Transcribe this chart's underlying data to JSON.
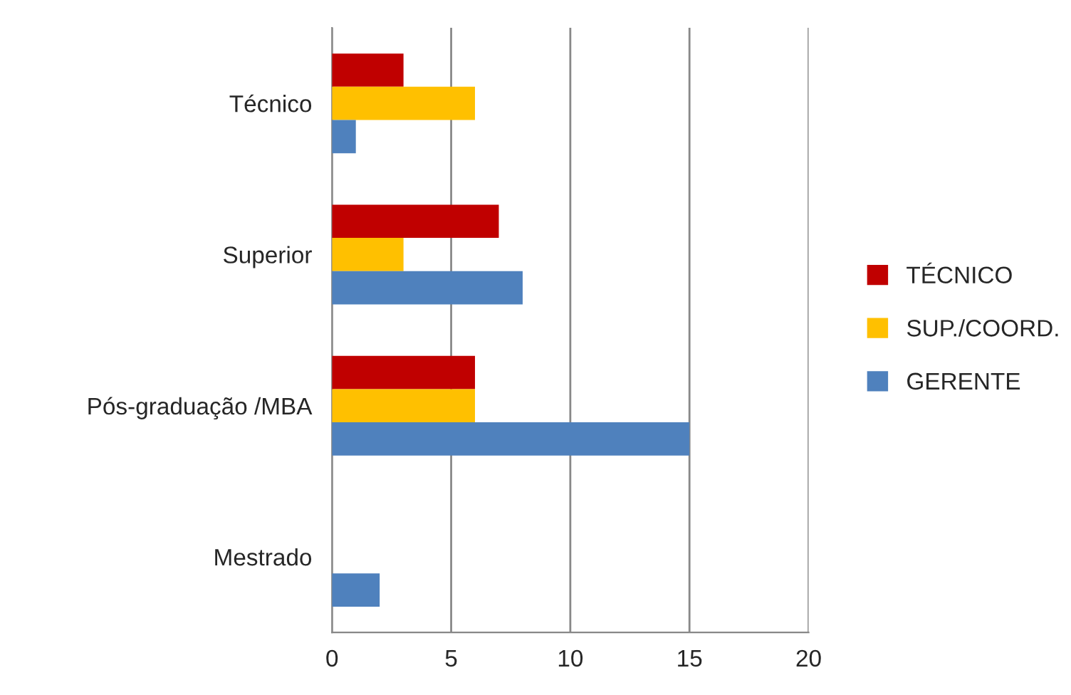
{
  "chart_data": {
    "type": "bar",
    "orientation": "horizontal",
    "categories": [
      "Técnico",
      "Superior",
      "Pós-graduação /MBA",
      "Mestrado"
    ],
    "series": [
      {
        "name": "TÉCNICO",
        "color": "#c00000",
        "values": [
          3,
          7,
          6,
          null
        ]
      },
      {
        "name": "SUP./COORD.",
        "color": "#ffc000",
        "values": [
          6,
          3,
          6,
          null
        ]
      },
      {
        "name": "GERENTE",
        "color": "#4f81bd",
        "values": [
          1,
          8,
          15,
          2
        ]
      }
    ],
    "xlim": [
      0,
      20
    ],
    "xticks": [
      0,
      5,
      10,
      15,
      20
    ],
    "grid": "x",
    "legend": "right"
  }
}
